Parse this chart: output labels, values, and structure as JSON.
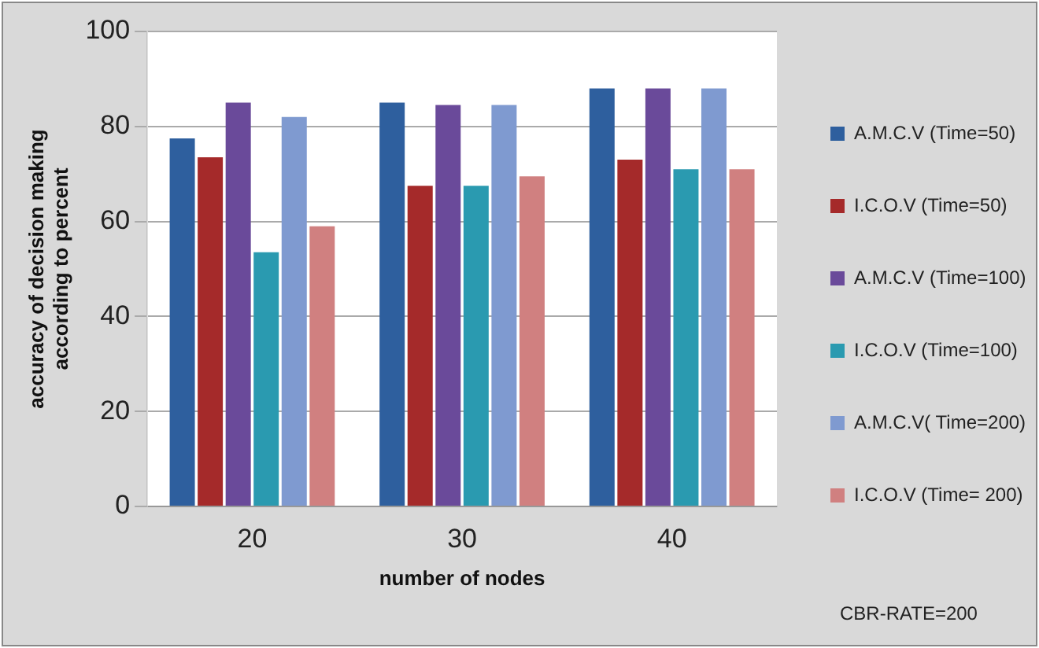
{
  "chart_data": {
    "type": "bar",
    "xlabel": "number of nodes",
    "ylabel": "accuracy of decision making according to percent",
    "categories": [
      "20",
      "30",
      "40"
    ],
    "series": [
      {
        "name": "A.M.C.V (Time=50)",
        "color": "#2e5f9e",
        "values": [
          77.5,
          85,
          88
        ]
      },
      {
        "name": "I.C.O.V (Time=50)",
        "color": "#a52a2a",
        "values": [
          73.5,
          67.5,
          73
        ]
      },
      {
        "name": "A.M.C.V (Time=100)",
        "color": "#6a4a9a",
        "values": [
          85,
          84.5,
          88
        ]
      },
      {
        "name": "I.C.O.V (Time=100)",
        "color": "#2a9ab0",
        "values": [
          53.5,
          67.5,
          71
        ]
      },
      {
        "name": "A.M.C.V( Time=200)",
        "color": "#7f9ad0",
        "values": [
          82,
          84.5,
          88
        ]
      },
      {
        "name": "I.C.O.V (Time= 200)",
        "color": "#d08080",
        "values": [
          59,
          69.5,
          71
        ]
      }
    ],
    "ylim": [
      0,
      100
    ],
    "yticks": [
      0,
      20,
      40,
      60,
      80,
      100
    ],
    "grid": "y",
    "legend": "right",
    "annotations": [
      "CBR-RATE=200"
    ]
  }
}
